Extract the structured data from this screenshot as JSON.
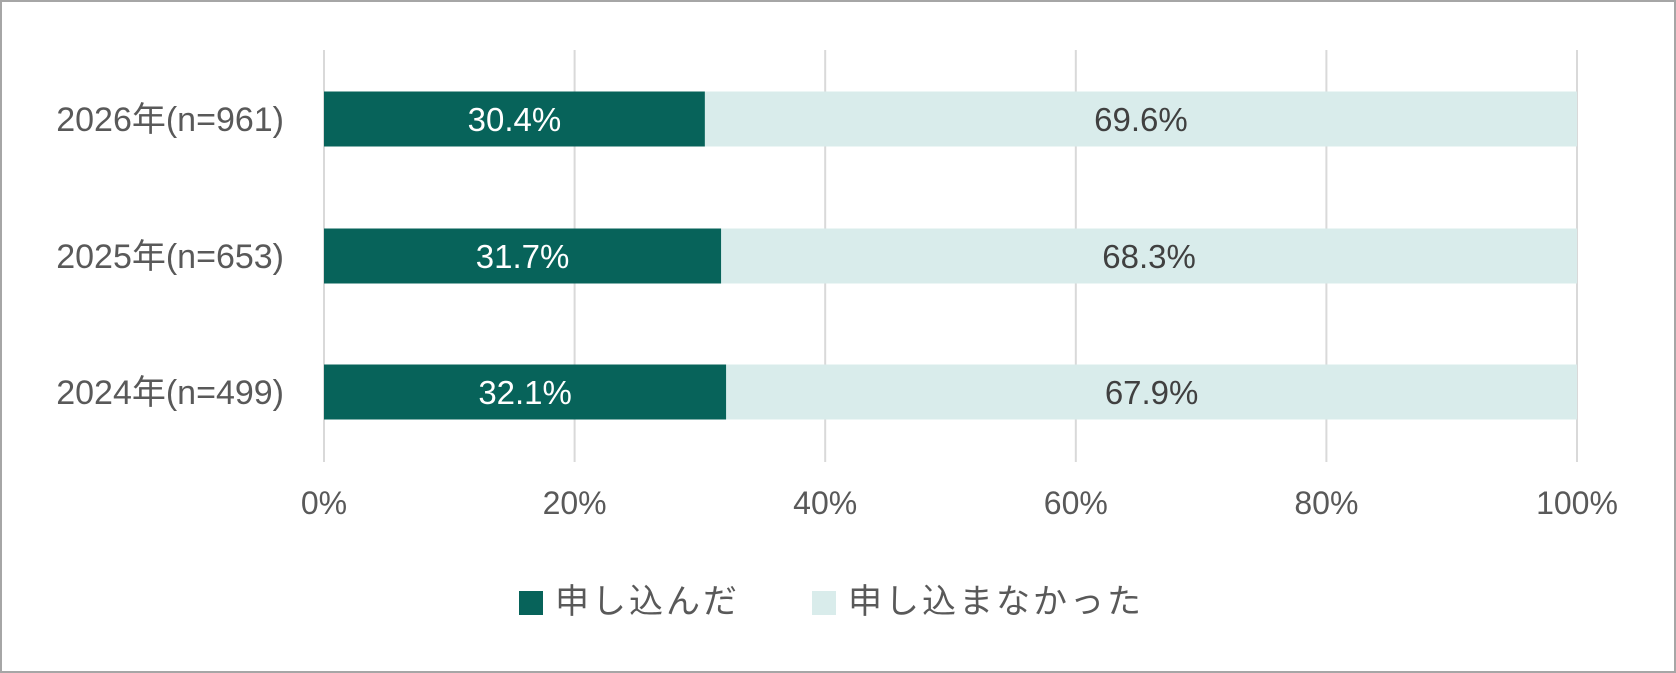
{
  "chart_data": {
    "type": "bar",
    "orientation": "horizontal",
    "stacked": "percent",
    "categories": [
      "2026年(n=961)",
      "2025年(n=653)",
      "2024年(n=499)"
    ],
    "series": [
      {
        "name": "申し込んだ",
        "values": [
          30.4,
          31.7,
          32.1
        ],
        "color": "#07635a",
        "label_color": "#ffffff"
      },
      {
        "name": "申し込まなかった",
        "values": [
          69.6,
          68.3,
          67.9
        ],
        "color": "#d9eceb",
        "label_color": "#404040"
      }
    ],
    "data_labels": [
      [
        "30.4%",
        "31.7%",
        "32.1%"
      ],
      [
        "69.6%",
        "68.3%",
        "67.9%"
      ]
    ],
    "x_ticks": [
      "0%",
      "20%",
      "40%",
      "60%",
      "80%",
      "100%"
    ],
    "x_tick_values": [
      0,
      20,
      40,
      60,
      80,
      100
    ],
    "xlim": [
      0,
      100
    ],
    "grid": true,
    "legend_position": "bottom",
    "title": "",
    "xlabel": "",
    "ylabel": ""
  }
}
